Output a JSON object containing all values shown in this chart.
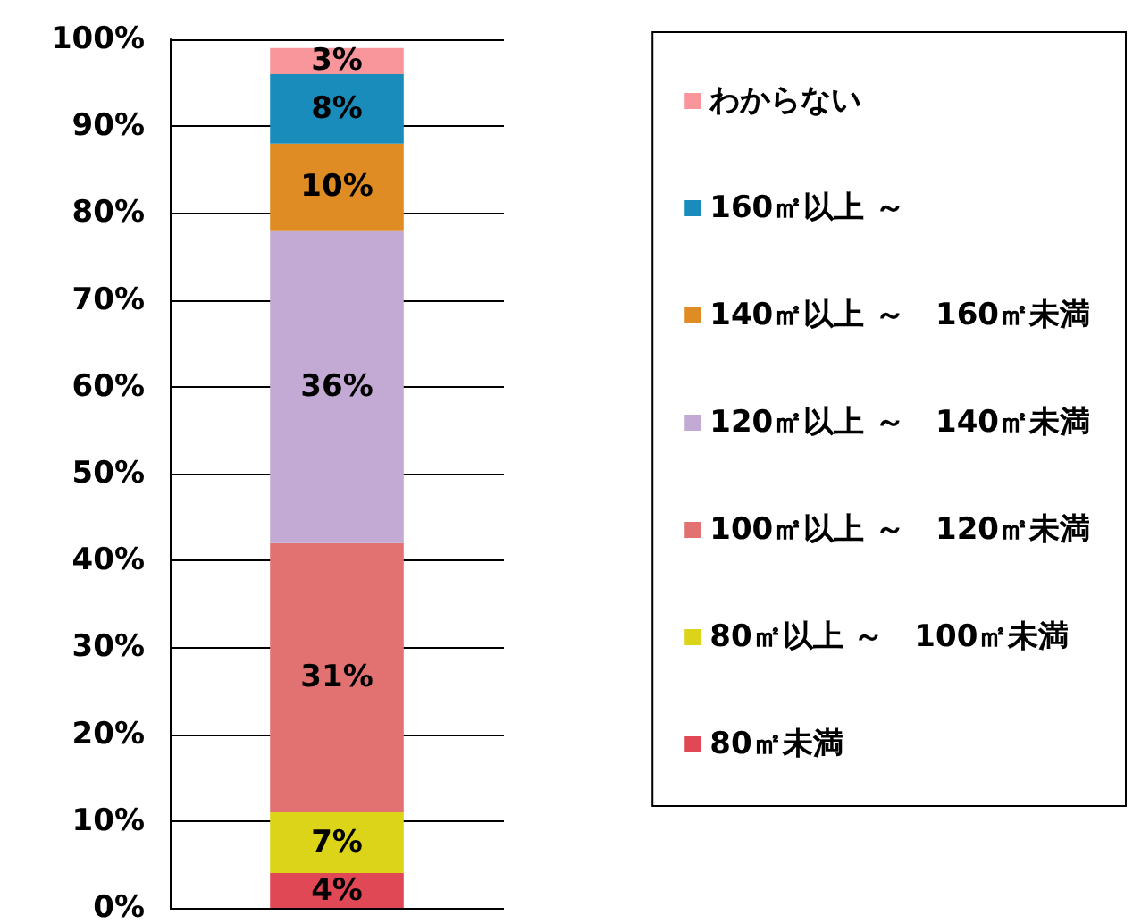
{
  "chart_data": {
    "type": "bar",
    "stacked": true,
    "categories": [
      null
    ],
    "series": [
      {
        "name": "80㎡未満",
        "color": "#e04856",
        "values": [
          4
        ],
        "value_labels": [
          "4%"
        ]
      },
      {
        "name": "80㎡以上 ～　100㎡未満",
        "color": "#dcd418",
        "values": [
          7
        ],
        "value_labels": [
          "7%"
        ]
      },
      {
        "name": "100㎡以上 ～　120㎡未満",
        "color": "#e27272",
        "values": [
          31
        ],
        "value_labels": [
          "31%"
        ]
      },
      {
        "name": "120㎡以上 ～　140㎡未満",
        "color": "#c2aad4",
        "values": [
          36
        ],
        "value_labels": [
          "36%"
        ]
      },
      {
        "name": "140㎡以上 ～　160㎡未満",
        "color": "#e08c24",
        "values": [
          10
        ],
        "value_labels": [
          "10%"
        ]
      },
      {
        "name": "160㎡以上 ～",
        "color": "#1a8cbc",
        "values": [
          8
        ],
        "value_labels": [
          "8%"
        ]
      },
      {
        "name": "わからない",
        "color": "#f8969c",
        "values": [
          3
        ],
        "value_labels": [
          "3%"
        ]
      }
    ],
    "ylim": [
      0,
      100
    ],
    "yticks": [
      {
        "value": 0,
        "label": "0%"
      },
      {
        "value": 10,
        "label": "10%"
      },
      {
        "value": 20,
        "label": "20%"
      },
      {
        "value": 30,
        "label": "30%"
      },
      {
        "value": 40,
        "label": "40%"
      },
      {
        "value": 50,
        "label": "50%"
      },
      {
        "value": 60,
        "label": "60%"
      },
      {
        "value": 70,
        "label": "70%"
      },
      {
        "value": 80,
        "label": "80%"
      },
      {
        "value": 90,
        "label": "90%"
      },
      {
        "value": 100,
        "label": "100%"
      }
    ],
    "grid": true,
    "legend": "right"
  }
}
